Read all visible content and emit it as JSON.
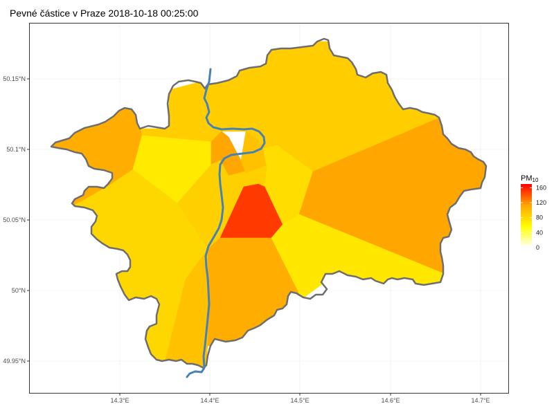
{
  "title": "Pevné částice v Praze 2018-10-18 00:25:00",
  "chart_data": {
    "type": "heatmap",
    "map_kind": "voronoi-choropleth",
    "title": "Pevné částice v Praze 2018-10-18 00:25:00",
    "x_axis": {
      "ticks": [
        {
          "value": 14.3,
          "label": "14.3°E"
        },
        {
          "value": 14.4,
          "label": "14.4°E"
        },
        {
          "value": 14.5,
          "label": "14.5°E"
        },
        {
          "value": 14.6,
          "label": "14.6°E"
        },
        {
          "value": 14.7,
          "label": "14.7°E"
        }
      ]
    },
    "y_axis": {
      "ticks": [
        {
          "value": 50.15,
          "label": "50.15°N"
        },
        {
          "value": 50.1,
          "label": "50.1°N"
        },
        {
          "value": 50.05,
          "label": "50.05°N"
        },
        {
          "value": 50.0,
          "label": "50°N"
        },
        {
          "value": 49.95,
          "label": "49.95°N"
        }
      ]
    },
    "grid": true,
    "legend": {
      "title_main": "PM",
      "title_sub": "10",
      "position": "right",
      "range": [
        0,
        170
      ],
      "ticks": [
        "0",
        "40",
        "80",
        "120",
        "160"
      ],
      "colors": [
        "#FFFFFF",
        "#FFFF00",
        "#FFA500",
        "#FF0000"
      ]
    },
    "colors": {
      "border": "#6e6e6e",
      "river": "#4682b4"
    },
    "cells": [
      {
        "id": "north-west-upper",
        "pm10": 88
      },
      {
        "id": "north-center",
        "pm10": 88
      },
      {
        "id": "north-east",
        "pm10": 88
      },
      {
        "id": "far-west",
        "pm10": 108
      },
      {
        "id": "west-center-light",
        "pm10": 70
      },
      {
        "id": "center-north-dark",
        "pm10": 112
      },
      {
        "id": "center-north-mid",
        "pm10": 96
      },
      {
        "id": "center-north-light",
        "pm10": 78
      },
      {
        "id": "center-west-orange",
        "pm10": 86
      },
      {
        "id": "east-big",
        "pm10": 112
      },
      {
        "id": "south-west-large",
        "pm10": 82
      },
      {
        "id": "center-red",
        "pm10": 150
      },
      {
        "id": "center-south",
        "pm10": 108
      },
      {
        "id": "south-east-light",
        "pm10": 72
      },
      {
        "id": "south-mid",
        "pm10": 96
      }
    ]
  }
}
